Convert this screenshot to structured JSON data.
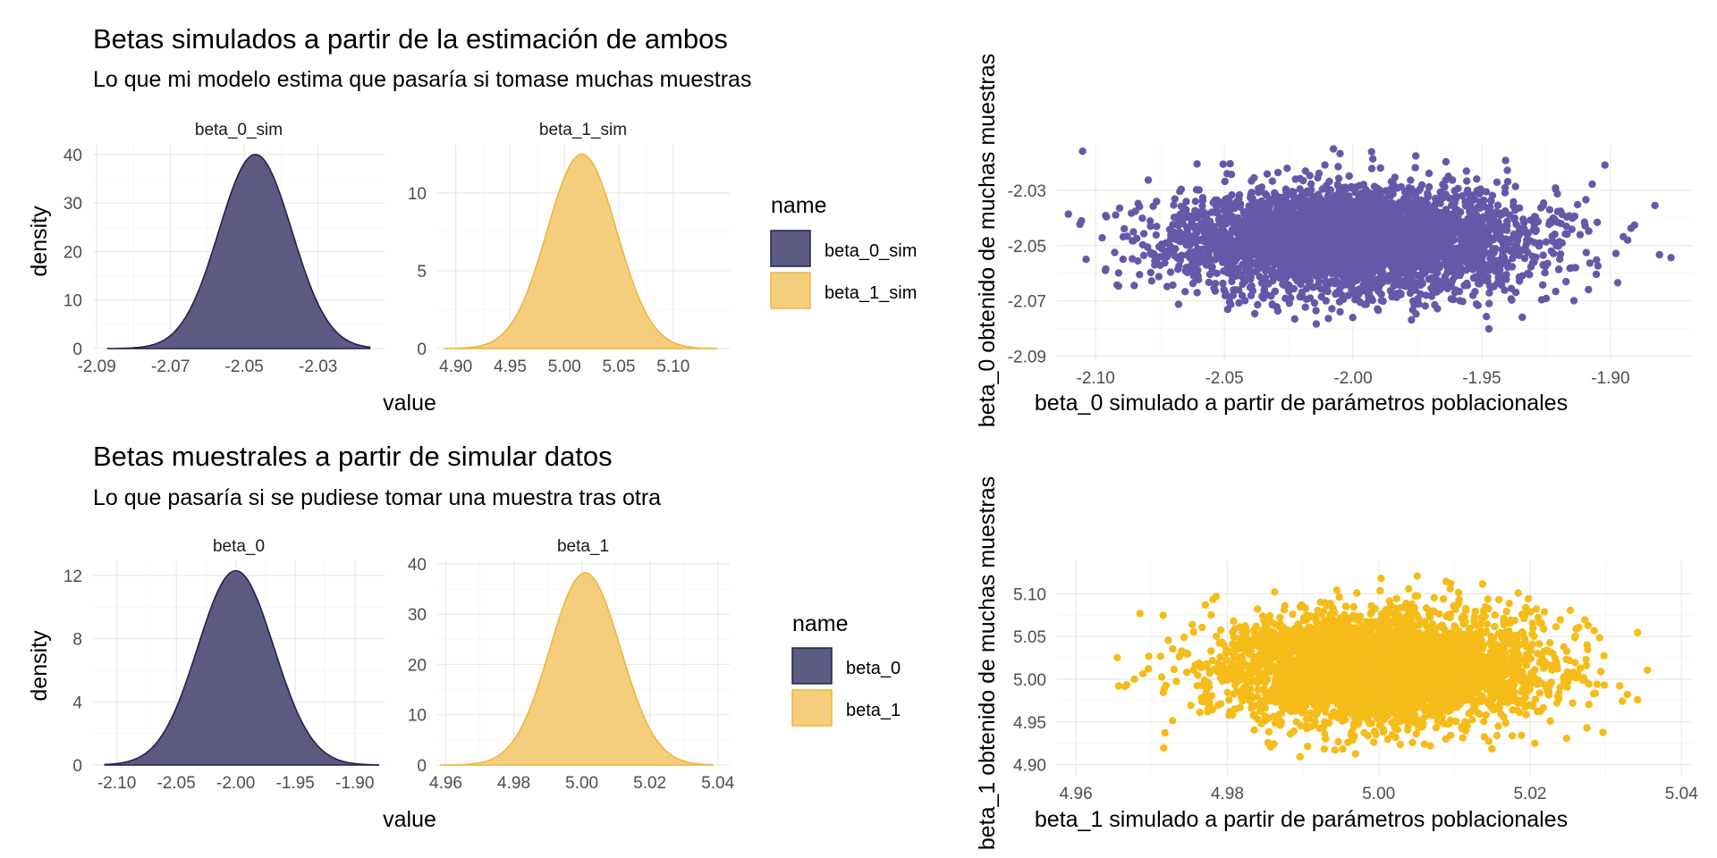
{
  "colors": {
    "purple_fill": "#5b5a81",
    "purple_line": "#23224e",
    "yellow_fill": "#f5ce7d",
    "yellow_line": "#f0b43c",
    "scatter_purple": "#6459a8",
    "scatter_yellow": "#f5bc19"
  },
  "top_panel": {
    "title": "Betas simulados a partir de la estimación de ambos",
    "subtitle": "Lo que mi modelo estima que pasaría si tomase muchas muestras",
    "ylabel": "density",
    "xlabel": "value",
    "legend": {
      "title": "name",
      "items": [
        "beta_0_sim",
        "beta_1_sim"
      ]
    }
  },
  "bottom_panel": {
    "title": "Betas muestrales a partir de simular datos",
    "subtitle": "Lo que pasaría si se pudiese tomar una muestra tras otra",
    "ylabel": "density",
    "xlabel": "value",
    "legend": {
      "title": "name",
      "items": [
        "beta_0",
        "beta_1"
      ]
    }
  },
  "scatter_top": {
    "xlabel": "beta_0 simulado a partir de parámetros poblacionales",
    "ylabel": "beta_0 obtenido de muchas muestras"
  },
  "scatter_bottom": {
    "xlabel": "beta_1 simulado a partir de parámetros poblacionales",
    "ylabel": "beta_1 obtenido de muchas muestras"
  },
  "chart_data": [
    {
      "type": "area",
      "facet": "beta_0_sim",
      "x_ticks": [
        -2.09,
        -2.07,
        -2.05,
        -2.03
      ],
      "y_ticks": [
        0,
        10,
        20,
        30,
        40
      ],
      "xlim": [
        -2.091,
        -2.012
      ],
      "ylim": [
        0,
        42
      ],
      "x_range": [
        -2.087,
        -2.016
      ],
      "mean": -2.047,
      "sd": 0.0099,
      "peak": 40
    },
    {
      "type": "area",
      "facet": "beta_1_sim",
      "x_ticks": [
        4.9,
        4.95,
        5.0,
        5.05,
        5.1
      ],
      "x_tick_labels": [
        "4.90",
        "4.95",
        "5.00",
        "5.05",
        "5.10"
      ],
      "y_ticks": [
        0,
        5,
        10
      ],
      "xlim": [
        4.883,
        5.152
      ],
      "ylim": [
        0,
        13.1
      ],
      "x_range": [
        4.89,
        5.14
      ],
      "mean": 5.016,
      "sd": 0.032,
      "peak": 12.5
    },
    {
      "type": "area",
      "facet": "beta_0",
      "x_ticks": [
        -2.1,
        -2.05,
        -2.0,
        -1.95,
        -1.9
      ],
      "x_tick_labels": [
        "-2.10",
        "-2.05",
        "-2.00",
        "-1.95",
        "-1.90"
      ],
      "y_ticks": [
        0,
        4,
        8,
        12
      ],
      "xlim": [
        -2.12,
        -1.875
      ],
      "ylim": [
        0,
        12.9
      ],
      "x_range": [
        -2.11,
        -1.88
      ],
      "mean": -2.0,
      "sd": 0.032,
      "peak": 12.3
    },
    {
      "type": "area",
      "facet": "beta_1",
      "x_ticks": [
        4.96,
        4.98,
        5.0,
        5.02,
        5.04
      ],
      "x_tick_labels": [
        "4.96",
        "4.98",
        "5.00",
        "5.02",
        "5.04"
      ],
      "y_ticks": [
        0,
        10,
        20,
        30,
        40
      ],
      "xlim": [
        4.9575,
        5.0435
      ],
      "ylim": [
        0,
        40.5
      ],
      "x_range": [
        4.9585,
        5.0385
      ],
      "mean": 5.001,
      "sd": 0.0104,
      "peak": 38.2
    },
    {
      "type": "scatter",
      "x_ticks": [
        -2.1,
        -2.05,
        -2.0,
        -1.95,
        -1.9
      ],
      "x_tick_labels": [
        "-2.10",
        "-2.05",
        "-2.00",
        "-1.95",
        "-1.90"
      ],
      "y_ticks": [
        -2.09,
        -2.07,
        -2.05,
        -2.03
      ],
      "xlim": [
        -2.115,
        -1.868
      ],
      "ylim": [
        -2.0915,
        -2.0135
      ],
      "x_mean": -2.0,
      "x_sd": 0.034,
      "y_mean": -2.048,
      "y_sd": 0.0095,
      "n_points": 4000
    },
    {
      "type": "scatter",
      "x_ticks": [
        4.96,
        4.98,
        5.0,
        5.02,
        5.04
      ],
      "x_tick_labels": [
        "4.96",
        "4.98",
        "5.00",
        "5.02",
        "5.04"
      ],
      "y_ticks": [
        4.9,
        4.95,
        5.0,
        5.05,
        5.1
      ],
      "y_tick_labels": [
        "4.90",
        "4.95",
        "5.00",
        "5.05",
        "5.10"
      ],
      "xlim": [
        4.9575,
        5.0415
      ],
      "ylim": [
        4.887,
        5.138
      ],
      "x_mean": 5.0,
      "x_sd": 0.0105,
      "y_mean": 5.013,
      "y_sd": 0.0315,
      "n_points": 4000
    }
  ]
}
